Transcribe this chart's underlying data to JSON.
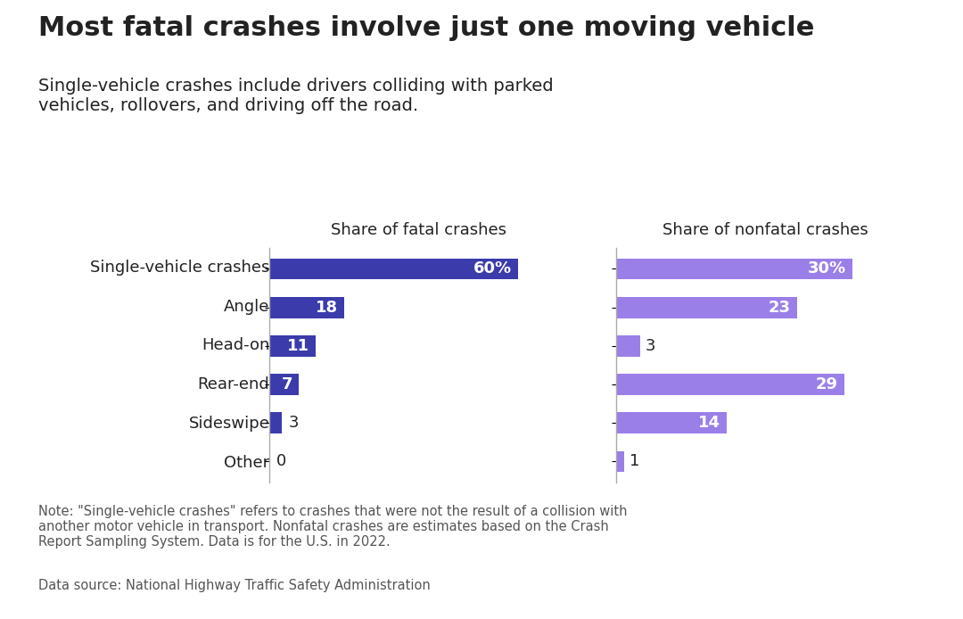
{
  "title": "Most fatal crashes involve just one moving vehicle",
  "subtitle": "Single-vehicle crashes include drivers colliding with parked\nvehicles, rollovers, and driving off the road.",
  "categories": [
    "Single-vehicle crashes",
    "Angle",
    "Head-on",
    "Rear-end",
    "Sideswipe",
    "Other"
  ],
  "fatal_values": [
    60,
    18,
    11,
    7,
    3,
    0
  ],
  "nonfatal_values": [
    30,
    23,
    3,
    29,
    14,
    1
  ],
  "fatal_labels": [
    "60%",
    "18",
    "11",
    "7",
    "3",
    "0"
  ],
  "nonfatal_labels": [
    "30%",
    "23",
    "3",
    "29",
    "14",
    "1"
  ],
  "fatal_color": "#3b3bab",
  "nonfatal_color": "#9b7fe8",
  "fatal_header": "Share of fatal crashes",
  "nonfatal_header": "Share of nonfatal crashes",
  "note": "Note: \"Single-vehicle crashes\" refers to crashes that were not the result of a collision with\nanother motor vehicle in transport. Nonfatal crashes are estimates based on the Crash\nReport Sampling System. Data is for the U.S. in 2022.",
  "source": "Data source: National Highway Traffic Safety Administration",
  "background_color": "#ffffff",
  "text_color": "#222222",
  "note_color": "#555555"
}
